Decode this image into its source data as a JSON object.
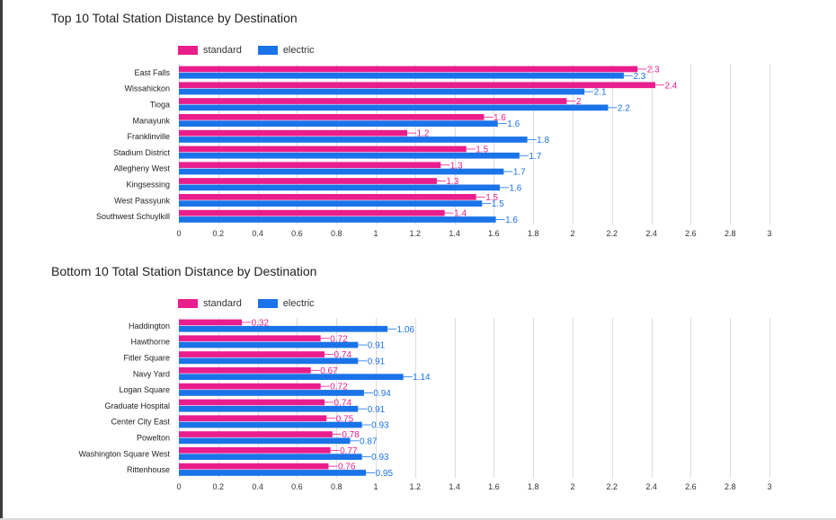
{
  "colors": {
    "standard": "#e91e8c",
    "electric": "#1a73e8"
  },
  "legend": {
    "standard": "standard",
    "electric": "electric"
  },
  "chart_data": [
    {
      "type": "bar",
      "orientation": "horizontal",
      "title": "Top 10 Total Station Distance by Destination",
      "categories": [
        "East Falls",
        "Wissahickon",
        "Tioga",
        "Manayunk",
        "Franklinville",
        "Stadium District",
        "Allegheny West",
        "Kingsessing",
        "West Passyunk",
        "Southwest Schuylkill"
      ],
      "series": [
        {
          "name": "standard",
          "values": [
            2.33,
            2.42,
            1.97,
            1.55,
            1.16,
            1.46,
            1.33,
            1.31,
            1.51,
            1.35
          ],
          "labels": [
            "2.3",
            "2.4",
            "2",
            "1.6",
            "1.2",
            "1.5",
            "1.3",
            "1.3",
            "1.5",
            "1.4"
          ]
        },
        {
          "name": "electric",
          "values": [
            2.26,
            2.06,
            2.18,
            1.62,
            1.77,
            1.73,
            1.65,
            1.63,
            1.54,
            1.61
          ],
          "labels": [
            "2.3",
            "2.1",
            "2.2",
            "1.6",
            "1.8",
            "1.7",
            "1.7",
            "1.6",
            "1.5",
            "1.6"
          ]
        }
      ],
      "xlim": [
        0,
        3
      ],
      "xticks": [
        "0",
        "0.2",
        "0.4",
        "0.6",
        "0.8",
        "1",
        "1.2",
        "1.4",
        "1.6",
        "1.8",
        "2",
        "2.2",
        "2.4",
        "2.6",
        "2.8",
        "3"
      ],
      "grid": true,
      "legend_position": "top-left"
    },
    {
      "type": "bar",
      "orientation": "horizontal",
      "title": "Bottom 10 Total Station Distance by Destination",
      "categories": [
        "Haddington",
        "Hawthorne",
        "Fitler Square",
        "Navy Yard",
        "Logan Square",
        "Graduate Hospital",
        "Center City East",
        "Powelton",
        "Washington Square West",
        "Rittenhouse"
      ],
      "series": [
        {
          "name": "standard",
          "values": [
            0.32,
            0.72,
            0.74,
            0.67,
            0.72,
            0.74,
            0.75,
            0.78,
            0.77,
            0.76
          ],
          "labels": [
            "0.32",
            "0.72",
            "0.74",
            "0.67",
            "0.72",
            "0.74",
            "0.75",
            "0.78",
            "0.77",
            "0.76"
          ]
        },
        {
          "name": "electric",
          "values": [
            1.06,
            0.91,
            0.91,
            1.14,
            0.94,
            0.91,
            0.93,
            0.87,
            0.93,
            0.95
          ],
          "labels": [
            "1.06",
            "0.91",
            "0.91",
            "1.14",
            "0.94",
            "0.91",
            "0.93",
            "0.87",
            "0.93",
            "0.95"
          ]
        }
      ],
      "xlim": [
        0,
        3
      ],
      "xticks": [
        "0",
        "0.2",
        "0.4",
        "0.6",
        "0.8",
        "1",
        "1.2",
        "1.4",
        "1.6",
        "1.8",
        "2",
        "2.2",
        "2.4",
        "2.6",
        "2.8",
        "3"
      ],
      "grid": true,
      "legend_position": "top-left"
    }
  ]
}
